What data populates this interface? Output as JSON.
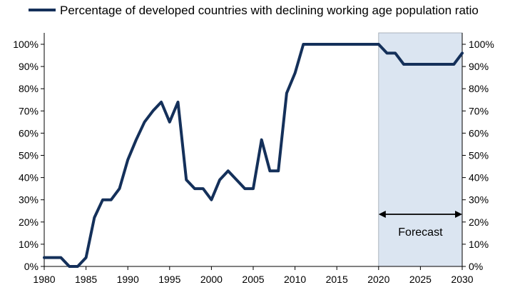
{
  "chart_data": {
    "type": "line",
    "title": "",
    "xlabel": "",
    "ylabel": "",
    "legend": {
      "placement": "top-left",
      "label": "Percentage of developed countries with declining working age population ratio"
    },
    "series": [
      {
        "name": "Percentage of developed countries with declining working age population ratio",
        "color": "#14305a",
        "x": [
          1980,
          1981,
          1982,
          1983,
          1984,
          1985,
          1986,
          1987,
          1988,
          1989,
          1990,
          1991,
          1992,
          1993,
          1994,
          1995,
          1996,
          1997,
          1998,
          1999,
          2000,
          2001,
          2002,
          2003,
          2004,
          2005,
          2006,
          2007,
          2008,
          2009,
          2010,
          2011,
          2012,
          2013,
          2014,
          2015,
          2016,
          2017,
          2018,
          2019,
          2020,
          2021,
          2022,
          2023,
          2024,
          2025,
          2026,
          2027,
          2028,
          2029,
          2030
        ],
        "y": [
          4,
          4,
          4,
          0,
          0,
          4,
          22,
          30,
          30,
          35,
          48,
          57,
          65,
          70,
          74,
          65,
          74,
          39,
          35,
          35,
          30,
          39,
          43,
          39,
          35,
          35,
          57,
          43,
          43,
          78,
          87,
          100,
          100,
          100,
          100,
          100,
          100,
          100,
          100,
          100,
          100,
          96,
          96,
          91,
          91,
          91,
          91,
          91,
          91,
          91,
          96
        ]
      }
    ],
    "xlim": [
      1980,
      2030
    ],
    "ylim": [
      0,
      100
    ],
    "x_ticks": [
      1980,
      1985,
      1990,
      1995,
      2000,
      2005,
      2010,
      2015,
      2020,
      2025,
      2030
    ],
    "y_ticks": [
      0,
      10,
      20,
      30,
      40,
      50,
      60,
      70,
      80,
      90,
      100
    ],
    "y_tick_labels": [
      "0%",
      "10%",
      "20%",
      "30%",
      "40%",
      "50%",
      "60%",
      "70%",
      "80%",
      "90%",
      "100%"
    ],
    "grid": false,
    "forecast": {
      "label": "Forecast",
      "start": 2020,
      "end": 2030,
      "color": "#dbe5f1"
    }
  }
}
